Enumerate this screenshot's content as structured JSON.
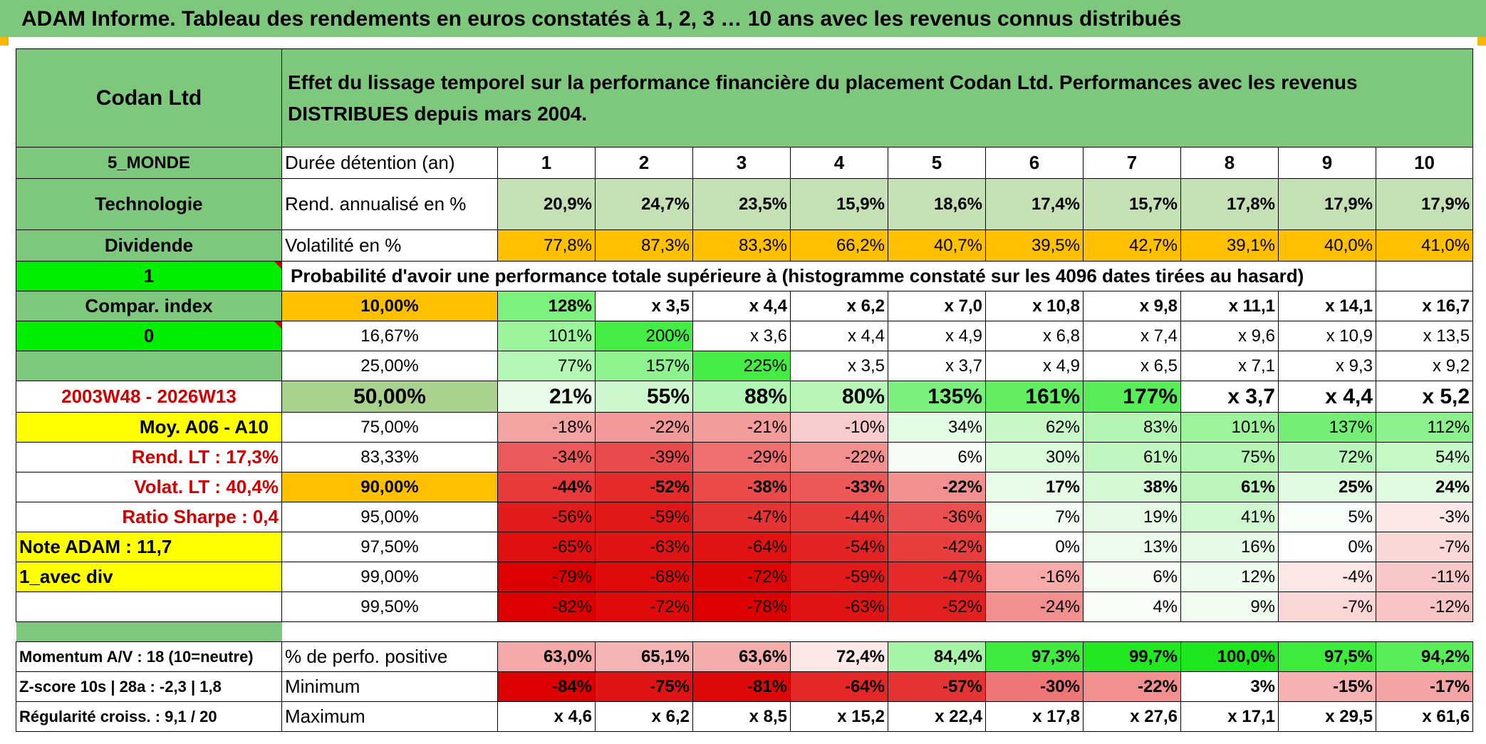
{
  "title": "ADAM Informe. Tableau des rendements en euros constatés à 1, 2, 3 … 10 ans avec les revenus connus distribués",
  "side": {
    "fund": "Codan Ltd",
    "region": "5_MONDE",
    "sector": "Technologie",
    "type": "Dividende",
    "one": "1",
    "compar": "Compar. index",
    "zero": "0",
    "period": "2003W48 - 2026W13",
    "moy": "Moy. A06 - A10",
    "rend_lt": "Rend. LT :   17,3%",
    "volat_lt": "Volat. LT :   40,4%",
    "sharpe": "Ratio Sharpe :    0,4",
    "note": "Note ADAM : 11,7",
    "avec_div": "1_avec div",
    "momentum": "Momentum A/V : 18 (10=neutre)",
    "zscore": "Z-score 10s | 28a : -2,3 | 1,8",
    "regularite": "Régularité croiss. : 9,1 / 20"
  },
  "description": "Effet du lissage temporel sur la performance financière du placement Codan Ltd. Performances avec les revenus DISTRIBUES depuis mars 2004.",
  "row_labels": {
    "duree": "Durée détention (an)",
    "rend": "Rend. annualisé en %",
    "vol": "Volatilité en %",
    "prob": "Probabilité d'avoir une performance totale supérieure à (histogramme constaté sur les 4096 dates tirées au hasard)",
    "positive": "% de perfo. positive",
    "minimum": "Minimum",
    "maximum": "Maximum"
  },
  "years": [
    "1",
    "2",
    "3",
    "4",
    "5",
    "6",
    "7",
    "8",
    "9",
    "10"
  ],
  "rend": [
    "20,9%",
    "24,7%",
    "23,5%",
    "15,9%",
    "18,6%",
    "17,4%",
    "15,7%",
    "17,8%",
    "17,9%",
    "17,9%"
  ],
  "vol": [
    "77,8%",
    "87,3%",
    "83,3%",
    "66,2%",
    "40,7%",
    "39,5%",
    "42,7%",
    "39,1%",
    "40,0%",
    "41,0%"
  ],
  "pct_rows": [
    {
      "p": "10,00%",
      "v": [
        "128%",
        "x 3,5",
        "x 4,4",
        "x 6,2",
        "x 7,0",
        "x 10,8",
        "x 9,8",
        "x 11,1",
        "x 14,1",
        "x 16,7"
      ]
    },
    {
      "p": "16,67%",
      "v": [
        "101%",
        "200%",
        "x 3,6",
        "x 4,4",
        "x 4,9",
        "x 6,8",
        "x 7,4",
        "x 9,6",
        "x 10,9",
        "x 13,5"
      ]
    },
    {
      "p": "25,00%",
      "v": [
        "77%",
        "157%",
        "225%",
        "x 3,5",
        "x 3,7",
        "x 4,9",
        "x 6,5",
        "x 7,1",
        "x 9,3",
        "x 9,2"
      ]
    },
    {
      "p": "50,00%",
      "v": [
        "21%",
        "55%",
        "88%",
        "80%",
        "135%",
        "161%",
        "177%",
        "x 3,7",
        "x 4,4",
        "x 5,2"
      ]
    },
    {
      "p": "75,00%",
      "v": [
        "-18%",
        "-22%",
        "-21%",
        "-10%",
        "34%",
        "62%",
        "83%",
        "101%",
        "137%",
        "112%"
      ]
    },
    {
      "p": "83,33%",
      "v": [
        "-34%",
        "-39%",
        "-29%",
        "-22%",
        "6%",
        "30%",
        "61%",
        "75%",
        "72%",
        "54%"
      ]
    },
    {
      "p": "90,00%",
      "v": [
        "-44%",
        "-52%",
        "-38%",
        "-33%",
        "-22%",
        "17%",
        "38%",
        "61%",
        "25%",
        "24%"
      ]
    },
    {
      "p": "95,00%",
      "v": [
        "-56%",
        "-59%",
        "-47%",
        "-44%",
        "-36%",
        "7%",
        "19%",
        "41%",
        "5%",
        "-3%"
      ]
    },
    {
      "p": "97,50%",
      "v": [
        "-65%",
        "-63%",
        "-64%",
        "-54%",
        "-42%",
        "0%",
        "13%",
        "16%",
        "0%",
        "-7%"
      ]
    },
    {
      "p": "99,00%",
      "v": [
        "-79%",
        "-68%",
        "-72%",
        "-59%",
        "-47%",
        "-16%",
        "6%",
        "12%",
        "-4%",
        "-11%"
      ]
    },
    {
      "p": "99,50%",
      "v": [
        "-82%",
        "-72%",
        "-78%",
        "-63%",
        "-52%",
        "-24%",
        "4%",
        "9%",
        "-7%",
        "-12%"
      ]
    }
  ],
  "positive": [
    "63,0%",
    "65,1%",
    "63,6%",
    "72,4%",
    "84,4%",
    "97,3%",
    "99,7%",
    "100,0%",
    "97,5%",
    "94,2%"
  ],
  "minimum": [
    "-84%",
    "-75%",
    "-81%",
    "-64%",
    "-57%",
    "-30%",
    "-22%",
    "3%",
    "-15%",
    "-17%"
  ],
  "maximum": [
    "x 4,6",
    "x 6,2",
    "x 8,5",
    "x 15,2",
    "x 22,4",
    "x 17,8",
    "x 27,6",
    "x 17,1",
    "x 29,5",
    "x 61,6"
  ],
  "colors": {
    "header_green": "#7dc87d",
    "accent_orange": "#ffc000",
    "accent_yellow": "#ffff00",
    "accent_lime": "#00ee00",
    "label_red": "#d00000"
  }
}
